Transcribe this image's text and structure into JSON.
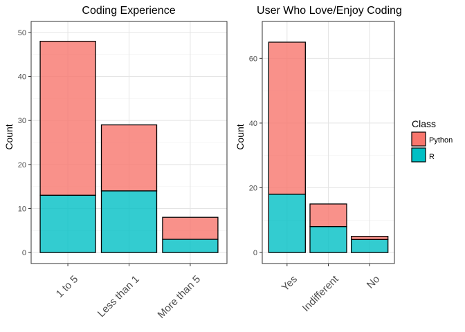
{
  "chart_data": [
    {
      "type": "bar",
      "stacked": true,
      "title": "Coding Experience",
      "xlabel": "",
      "ylabel": "Count",
      "categories": [
        "1 to 5",
        "Less than 1",
        "More than 5"
      ],
      "series": [
        {
          "name": "Python",
          "values": [
            35,
            15,
            5
          ],
          "color": "#F8766D"
        },
        {
          "name": "R",
          "values": [
            13,
            14,
            3
          ],
          "color": "#00BFC4"
        }
      ],
      "ylim": [
        0,
        50
      ],
      "yticks": [
        0,
        10,
        20,
        30,
        40,
        50
      ],
      "grid": true
    },
    {
      "type": "bar",
      "stacked": true,
      "title": "User Who Love/Enjoy Coding",
      "xlabel": "",
      "ylabel": "Count",
      "categories": [
        "Yes",
        "Indifferent",
        "No"
      ],
      "series": [
        {
          "name": "Python",
          "values": [
            47,
            7,
            1
          ],
          "color": "#F8766D"
        },
        {
          "name": "R",
          "values": [
            18,
            8,
            4
          ],
          "color": "#00BFC4"
        }
      ],
      "ylim": [
        0,
        68
      ],
      "yticks": [
        0,
        20,
        40,
        60
      ],
      "grid": true
    }
  ],
  "legend": {
    "title": "Class",
    "placement": "right",
    "items": [
      {
        "label": "Python",
        "color": "#F8766D"
      },
      {
        "label": "R",
        "color": "#00BFC4"
      }
    ]
  }
}
